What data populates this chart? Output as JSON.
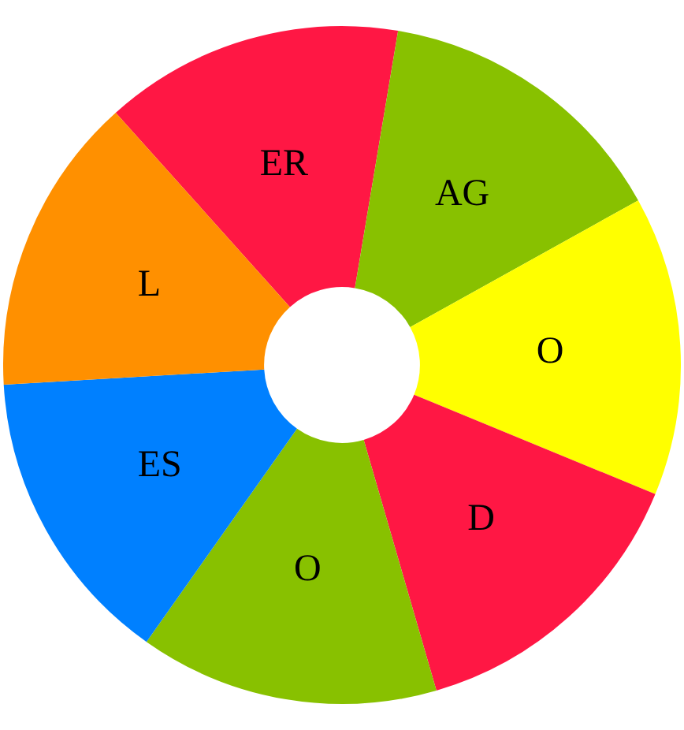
{
  "chart_data": {
    "type": "donut",
    "categories": [
      "ER",
      "AG",
      "O",
      "D",
      "O",
      "ES",
      "L"
    ],
    "values": [
      14.29,
      14.29,
      14.29,
      14.29,
      14.29,
      14.29,
      14.29
    ],
    "colors": [
      "#ff1744",
      "#88c100",
      "#ffff00",
      "#ff1744",
      "#88c100",
      "#0080ff",
      "#ff9000"
    ],
    "legend": false
  }
}
